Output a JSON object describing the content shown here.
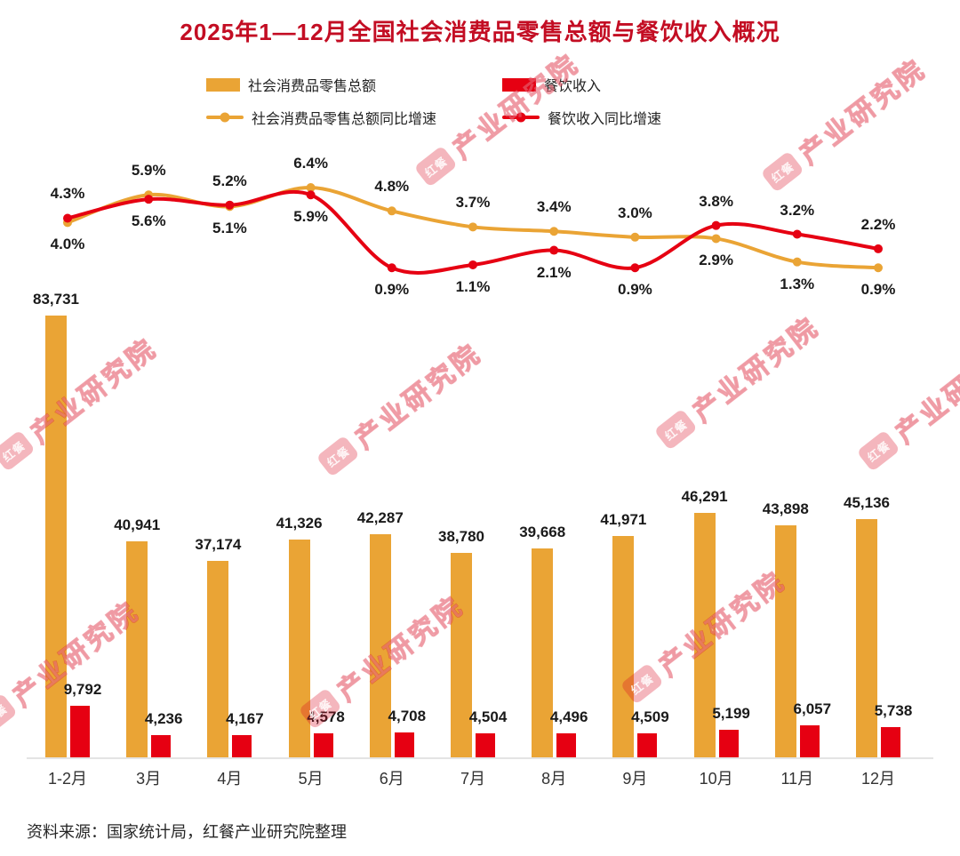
{
  "title": "2025年1—12月全国社会消费品零售总额与餐饮收入概况",
  "source_note": "资料来源：国家统计局，红餐产业研究院整理",
  "watermark": {
    "badge": "红餐",
    "text": "产业研究院"
  },
  "colors": {
    "title": "#c30d23",
    "retail_orange": "#EAA435",
    "catering_red": "#E60012",
    "label_text": "#1a1a1a",
    "axis_line": "#e4e4e4"
  },
  "legend": {
    "items": [
      {
        "label": "社会消费品零售总额",
        "type": "bar",
        "color": "#EAA435"
      },
      {
        "label": "餐饮收入",
        "type": "bar",
        "color": "#E60012"
      },
      {
        "label": "社会消费品零售总额同比增速",
        "type": "line",
        "color": "#EAA435"
      },
      {
        "label": "餐饮收入同比增速",
        "type": "line",
        "color": "#E60012"
      }
    ]
  },
  "chart_data": {
    "type": "bar",
    "subtype": "grouped bars with two YoY growth-rate lines (combo chart)",
    "title": "2025年1—12月全国社会消费品零售总额与餐饮收入概况",
    "categories": [
      "1-2月",
      "3月",
      "4月",
      "5月",
      "6月",
      "7月",
      "8月",
      "9月",
      "10月",
      "11月",
      "12月"
    ],
    "bar_series": [
      {
        "name": "社会消费品零售总额",
        "color": "#EAA435",
        "values": [
          83731,
          40941,
          37174,
          41326,
          42287,
          38780,
          39668,
          41971,
          46291,
          43898,
          45136
        ]
      },
      {
        "name": "餐饮收入",
        "color": "#E60012",
        "values": [
          9792,
          4236,
          4167,
          4578,
          4708,
          4504,
          4496,
          4509,
          5199,
          6057,
          5738
        ]
      }
    ],
    "line_series": [
      {
        "name": "社会消费品零售总额同比增速",
        "color": "#EAA435",
        "unit": "%",
        "values": [
          4.0,
          5.9,
          5.1,
          6.4,
          4.8,
          3.7,
          3.4,
          3.0,
          2.9,
          1.3,
          0.9
        ]
      },
      {
        "name": "餐饮收入同比增速",
        "color": "#E60012",
        "unit": "%",
        "values": [
          4.3,
          5.6,
          5.2,
          5.9,
          0.9,
          1.1,
          2.1,
          0.9,
          3.8,
          3.2,
          2.2
        ]
      }
    ],
    "legend_position": "top",
    "grid": false,
    "value_labels": true,
    "bar_axis_baseline": 0
  }
}
